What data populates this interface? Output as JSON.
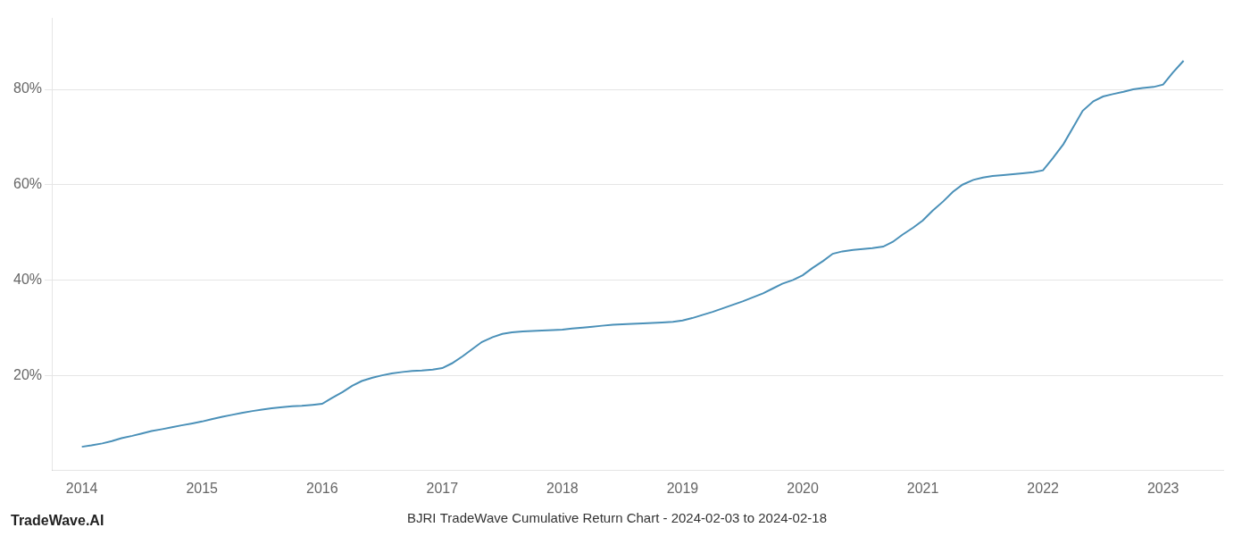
{
  "chart_data": {
    "type": "line",
    "title": "BJRI TradeWave Cumulative Return Chart - 2024-02-03 to 2024-02-18",
    "annotations": [
      "TradeWave.AI"
    ],
    "color": "#4a90b8",
    "x": [
      2014.0,
      2014.08,
      2014.17,
      2014.25,
      2014.33,
      2014.42,
      2014.5,
      2014.58,
      2014.67,
      2014.75,
      2014.83,
      2014.92,
      2015.0,
      2015.08,
      2015.17,
      2015.25,
      2015.33,
      2015.42,
      2015.5,
      2015.58,
      2015.67,
      2015.75,
      2015.83,
      2015.92,
      2016.0,
      2016.08,
      2016.17,
      2016.25,
      2016.33,
      2016.42,
      2016.5,
      2016.58,
      2016.67,
      2016.75,
      2016.83,
      2016.92,
      2017.0,
      2017.08,
      2017.17,
      2017.25,
      2017.33,
      2017.42,
      2017.5,
      2017.58,
      2017.67,
      2017.75,
      2017.83,
      2017.92,
      2018.0,
      2018.08,
      2018.17,
      2018.25,
      2018.33,
      2018.42,
      2018.5,
      2018.58,
      2018.67,
      2018.75,
      2018.83,
      2018.92,
      2019.0,
      2019.08,
      2019.17,
      2019.25,
      2019.33,
      2019.42,
      2019.5,
      2019.58,
      2019.67,
      2019.75,
      2019.83,
      2019.92,
      2020.0,
      2020.08,
      2020.17,
      2020.25,
      2020.33,
      2020.42,
      2020.5,
      2020.58,
      2020.67,
      2020.75,
      2020.83,
      2020.92,
      2021.0,
      2021.08,
      2021.17,
      2021.25,
      2021.33,
      2021.42,
      2021.5,
      2021.58,
      2021.67,
      2021.75,
      2021.83,
      2021.92,
      2022.0,
      2022.08,
      2022.17,
      2022.25,
      2022.33,
      2022.42,
      2022.5,
      2022.58,
      2022.67,
      2022.75,
      2022.83,
      2022.92,
      2023.0,
      2023.08,
      2023.17
    ],
    "values": [
      5.0,
      5.3,
      5.7,
      6.2,
      6.8,
      7.3,
      7.8,
      8.3,
      8.7,
      9.1,
      9.5,
      9.9,
      10.3,
      10.8,
      11.3,
      11.7,
      12.1,
      12.5,
      12.8,
      13.1,
      13.3,
      13.5,
      13.6,
      13.8,
      14.0,
      15.2,
      16.5,
      17.8,
      18.8,
      19.5,
      20.0,
      20.4,
      20.7,
      20.9,
      21.0,
      21.2,
      21.5,
      22.5,
      24.0,
      25.5,
      27.0,
      28.0,
      28.7,
      29.0,
      29.2,
      29.3,
      29.4,
      29.5,
      29.6,
      29.8,
      30.0,
      30.2,
      30.4,
      30.6,
      30.7,
      30.8,
      30.9,
      31.0,
      31.1,
      31.2,
      31.5,
      32.0,
      32.7,
      33.3,
      34.0,
      34.8,
      35.5,
      36.3,
      37.2,
      38.2,
      39.2,
      40.0,
      41.0,
      42.5,
      44.0,
      45.5,
      46.0,
      46.3,
      46.5,
      46.7,
      47.0,
      48.0,
      49.5,
      51.0,
      52.5,
      54.5,
      56.5,
      58.5,
      60.0,
      61.0,
      61.5,
      61.8,
      62.0,
      62.2,
      62.4,
      62.6,
      63.0,
      65.5,
      68.5,
      72.0,
      75.5,
      77.5,
      78.5,
      79.0,
      79.5,
      80.0,
      80.3,
      80.5,
      81.0,
      83.5,
      86.0
    ],
    "xlim": [
      2013.75,
      2023.5
    ],
    "ylim": [
      0,
      95
    ],
    "xticks": [
      2014,
      2015,
      2016,
      2017,
      2018,
      2019,
      2020,
      2021,
      2022,
      2023
    ],
    "yticks": [
      {
        "value": 20,
        "label": "20%"
      },
      {
        "value": 40,
        "label": "40%"
      },
      {
        "value": 60,
        "label": "60%"
      },
      {
        "value": 80,
        "label": "80%"
      }
    ],
    "grid": "y"
  }
}
